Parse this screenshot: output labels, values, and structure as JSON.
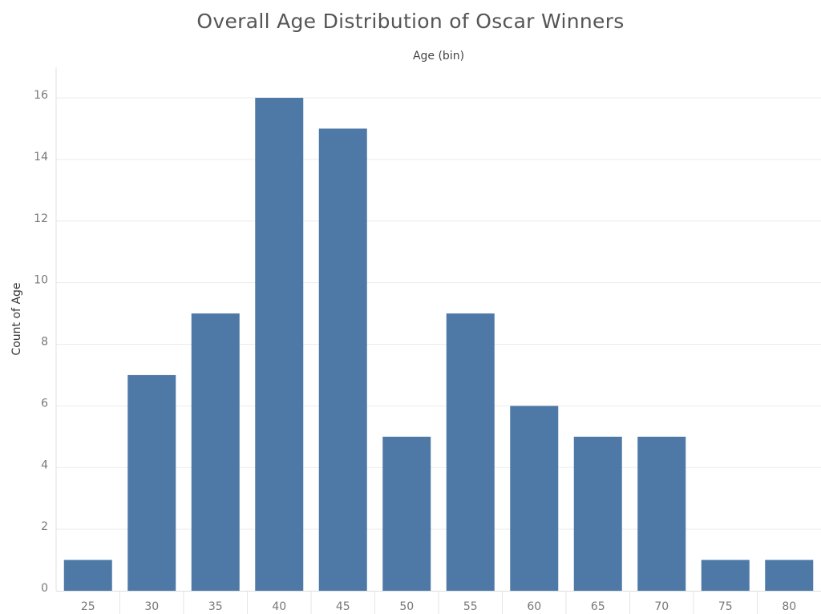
{
  "chart_data": {
    "type": "bar",
    "title": "Overall Age Distribution of Oscar Winners",
    "xlabel": "Age (bin)",
    "ylabel": "Count of Age",
    "categories": [
      "25",
      "30",
      "35",
      "40",
      "45",
      "50",
      "55",
      "60",
      "65",
      "70",
      "75",
      "80"
    ],
    "values": [
      1,
      7,
      9,
      16,
      15,
      5,
      9,
      6,
      5,
      5,
      1,
      1
    ],
    "ylim": [
      0,
      17
    ],
    "yticks": [
      0,
      2,
      4,
      6,
      8,
      10,
      12,
      14,
      16
    ],
    "grid": true,
    "bar_color": "#4e79a7"
  }
}
